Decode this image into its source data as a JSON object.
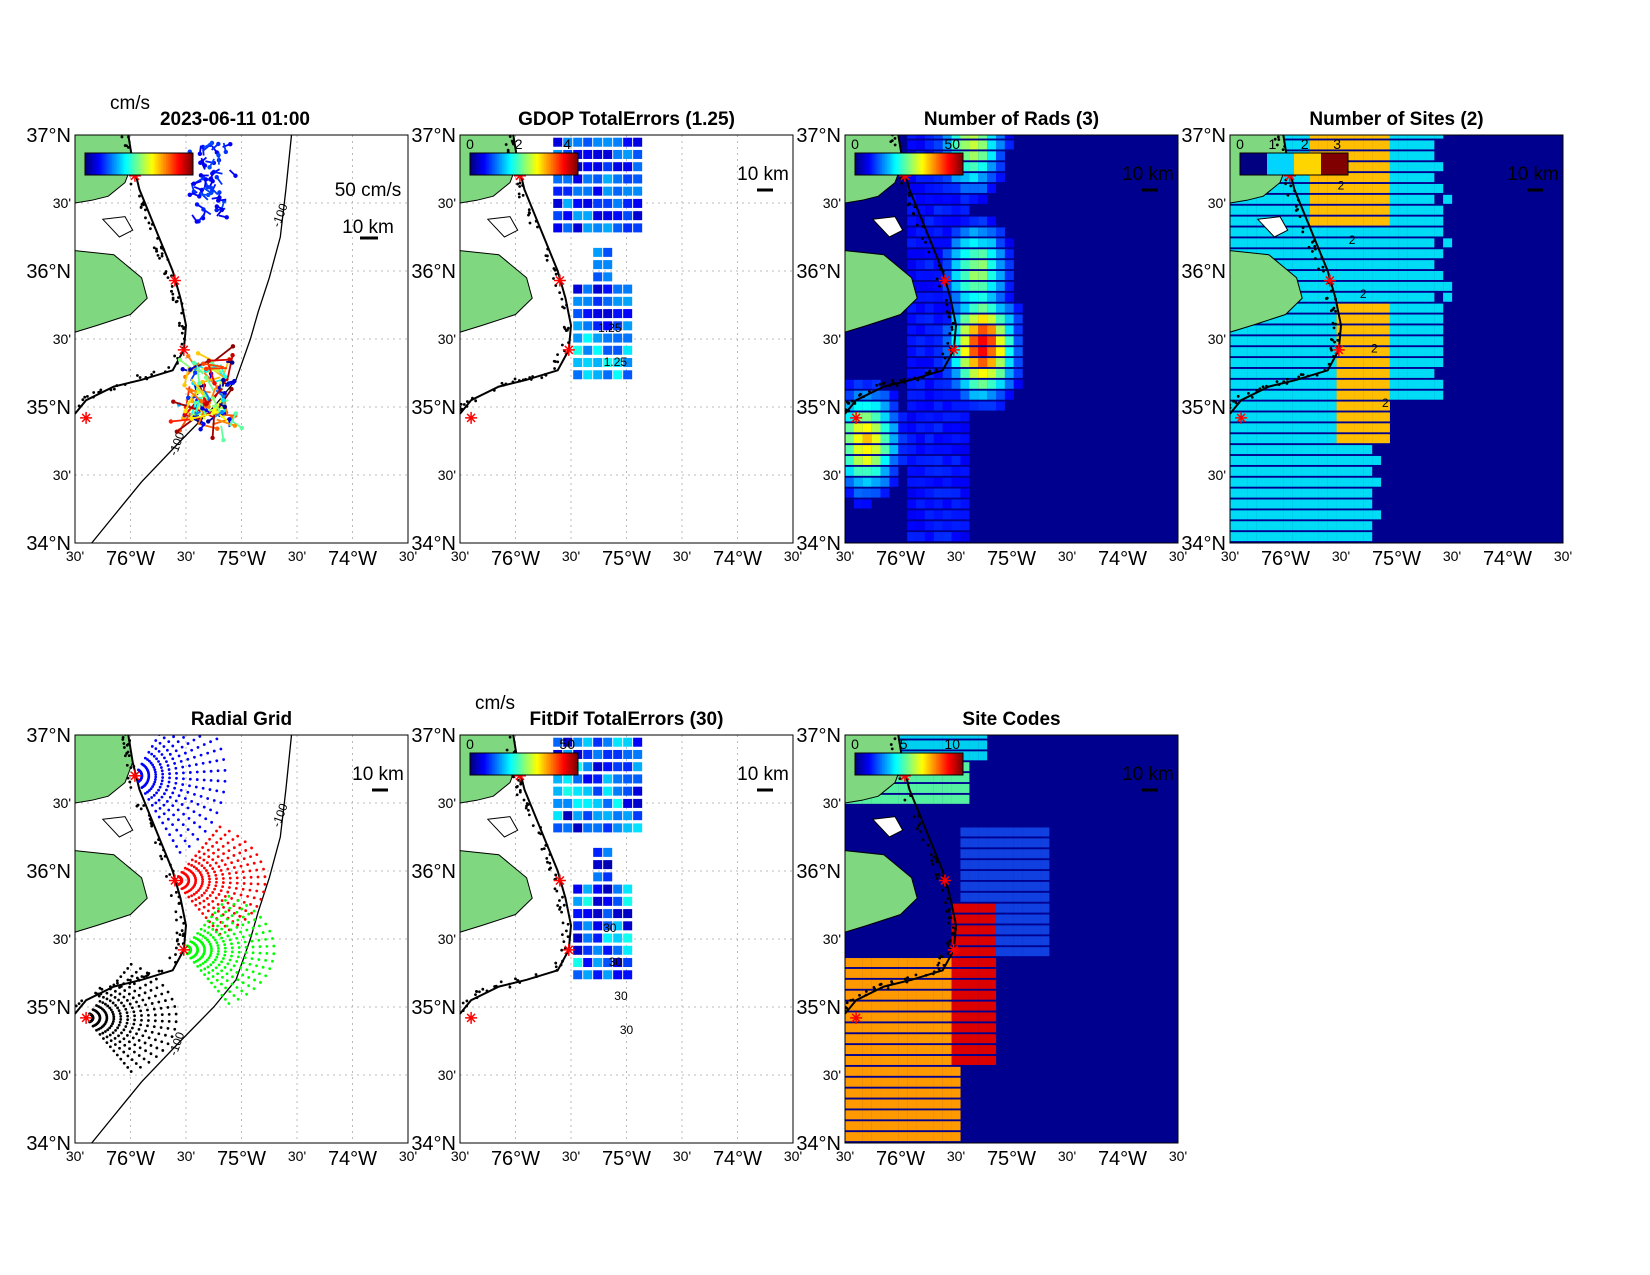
{
  "figure_time": "2023-06-11 01:00",
  "colors": {
    "land": "#7fd77f",
    "jet_dark_blue": "#00008f",
    "cyan": "#00dcf5",
    "orange": "#ffbf00",
    "site_marker": "#ff0000"
  },
  "lat_ticks": [
    "37°N",
    "30'",
    "36°N",
    "30'",
    "35°N",
    "30'",
    "34°N"
  ],
  "lon_ticks": [
    "30'",
    "76°W",
    "30'",
    "75°W",
    "30'",
    "74°W",
    "30'"
  ],
  "panels": [
    {
      "id": "p1",
      "title": "2023-06-11 01:00",
      "unit": "cm/s",
      "colorbar_ticks": [],
      "scale_vector": "50 cm/s",
      "scale_bar": "10 km",
      "contour_labels": [
        "-100",
        "-100"
      ]
    },
    {
      "id": "p2",
      "title": "GDOP TotalErrors (1.25)",
      "unit": "",
      "colorbar_ticks": [
        "0",
        "2",
        "4"
      ],
      "scale_bar": "10 km",
      "contour_labels": [
        "1.25",
        "1.25"
      ]
    },
    {
      "id": "p3",
      "title": "Number of Rads (3)",
      "unit": "",
      "colorbar_ticks": [
        "0",
        "50"
      ],
      "scale_bar": "10 km",
      "contour_labels": [
        "3"
      ]
    },
    {
      "id": "p4",
      "title": "Number of Sites (2)",
      "unit": "",
      "colorbar_ticks": [
        "0",
        "1",
        "2",
        "3"
      ],
      "scale_bar": "10 km",
      "contour_labels": [
        "2",
        "2",
        "2",
        "2",
        "2"
      ]
    },
    {
      "id": "p5",
      "title": "Radial Grid",
      "unit": "",
      "colorbar_ticks": [],
      "scale_bar": "10 km",
      "contour_labels": [
        "-100",
        "-100"
      ]
    },
    {
      "id": "p6",
      "title": "FitDif TotalErrors (30)",
      "unit": "cm/s",
      "colorbar_ticks": [
        "0",
        "50"
      ],
      "scale_bar": "10 km",
      "contour_labels": [
        "30",
        "30",
        "30",
        "30"
      ]
    },
    {
      "id": "p7",
      "title": "Site Codes",
      "unit": "",
      "colorbar_ticks": [
        "0",
        "5",
        "10"
      ],
      "scale_bar": "10 km",
      "contour_labels": []
    }
  ]
}
